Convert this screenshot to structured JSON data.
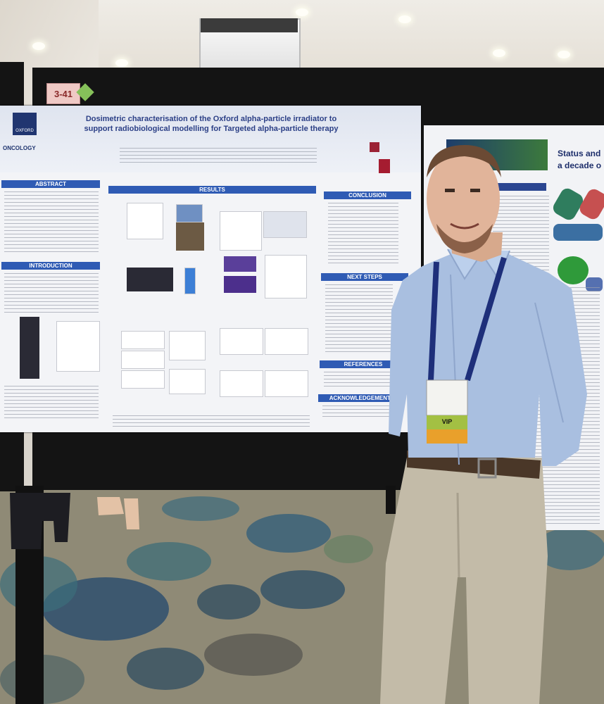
{
  "scene": {
    "description_type": "photo",
    "colors": {
      "poster_header_blue": "#2f5bb4",
      "shirt": "#a9bfe0",
      "trousers": "#c3bba8"
    }
  },
  "booth": {
    "tag": "3-41"
  },
  "poster_main": {
    "title": "Dosimetric characterisation of the Oxford alpha-particle irradiator to support radiobiological modelling for Targeted alpha-particle therapy",
    "sections": {
      "abstract": "ABSTRACT",
      "introduction": "INTRODUCTION",
      "results": "RESULTS",
      "conclusion": "CONCLUSION",
      "next_steps": "NEXT STEPS",
      "references": "REFERENCES",
      "acknowledgements": "ACKNOWLEDGEMENTS"
    },
    "logo_left": "OXFORD",
    "logo_left_sub": "ONCOLOGY"
  },
  "poster_right": {
    "title": "Status and a decade o"
  },
  "badge": {
    "ribbon": "VIP"
  }
}
